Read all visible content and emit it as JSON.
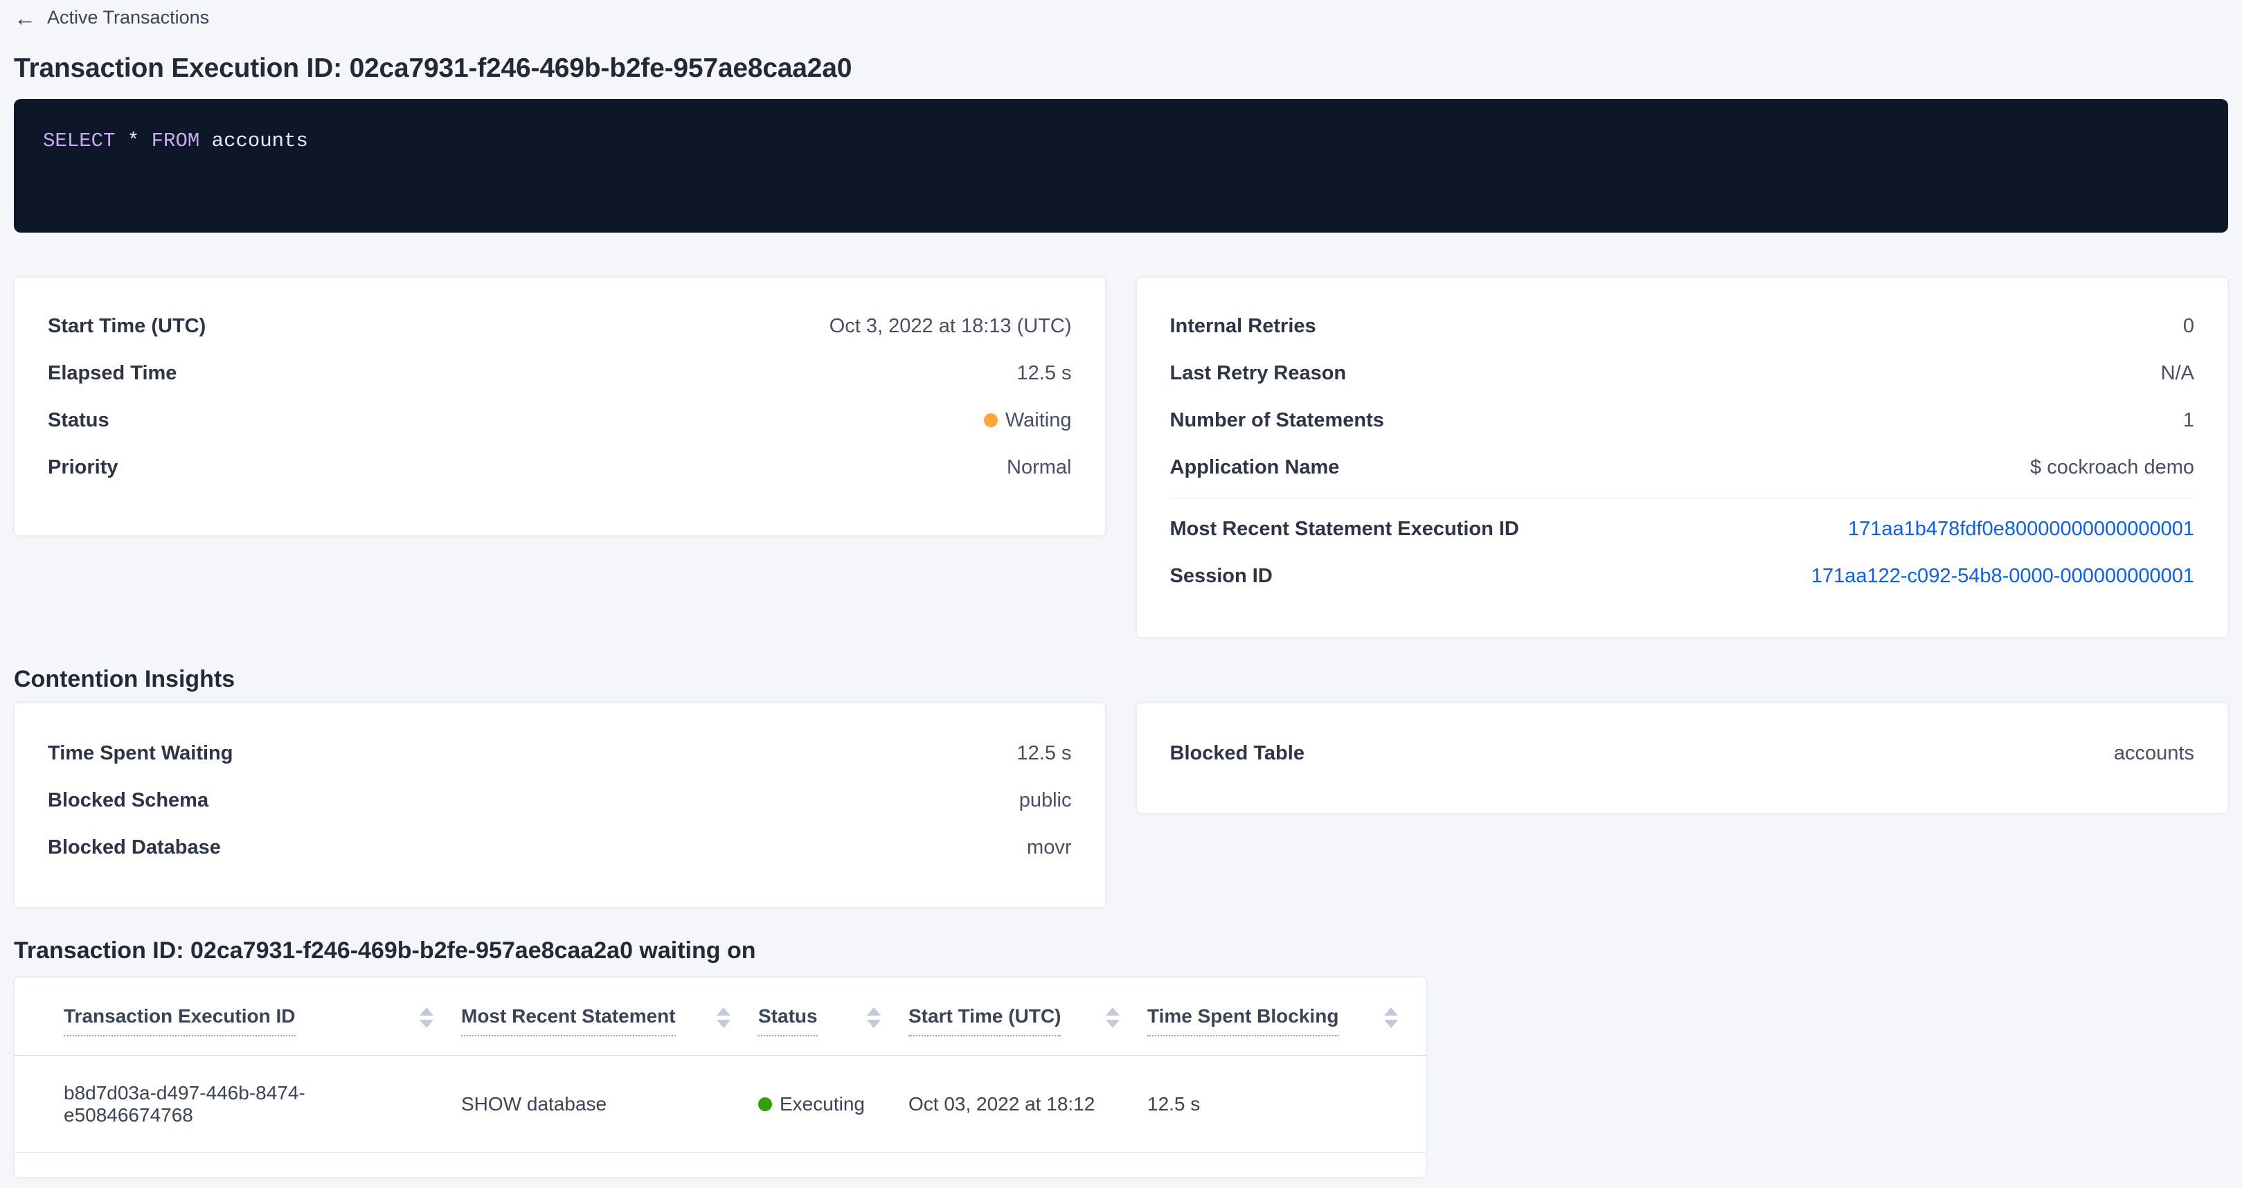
{
  "header": {
    "back_label": "Active Transactions",
    "title": "Transaction Execution ID: 02ca7931-f246-469b-b2fe-957ae8caa2a0"
  },
  "sql": {
    "keyword_select": "SELECT",
    "star": " * ",
    "keyword_from": "FROM",
    "table": " accounts"
  },
  "overview_left": {
    "rows": [
      {
        "label": "Start Time (UTC)",
        "value": "Oct 3, 2022 at 18:13 (UTC)"
      },
      {
        "label": "Elapsed Time",
        "value": "12.5 s"
      },
      {
        "label": "Status",
        "value": "Waiting"
      },
      {
        "label": "Priority",
        "value": "Normal"
      }
    ]
  },
  "overview_right": {
    "rows": [
      {
        "label": "Internal Retries",
        "value": "0"
      },
      {
        "label": "Last Retry Reason",
        "value": "N/A"
      },
      {
        "label": "Number of Statements",
        "value": "1"
      },
      {
        "label": "Application Name",
        "value": "$ cockroach demo"
      }
    ],
    "links": [
      {
        "label": "Most Recent Statement Execution ID",
        "value": "171aa1b478fdf0e80000000000000001"
      },
      {
        "label": "Session ID",
        "value": "171aa122-c092-54b8-0000-000000000001"
      }
    ]
  },
  "contention": {
    "heading": "Contention Insights",
    "left_rows": [
      {
        "label": "Time Spent Waiting",
        "value": "12.5 s"
      },
      {
        "label": "Blocked Schema",
        "value": "public"
      },
      {
        "label": "Blocked Database",
        "value": "movr"
      }
    ],
    "right_rows": [
      {
        "label": "Blocked Table",
        "value": "accounts"
      }
    ]
  },
  "waiting_table": {
    "heading": "Transaction ID: 02ca7931-f246-469b-b2fe-957ae8caa2a0 waiting on",
    "columns": [
      "Transaction Execution ID",
      "Most Recent Statement",
      "Status",
      "Start Time (UTC)",
      "Time Spent Blocking"
    ],
    "rows": [
      {
        "execution_id": "b8d7d03a-d497-446b-8474-e50846674768",
        "statement": "SHOW database",
        "status": "Executing",
        "start_time": "Oct 03, 2022 at 18:12",
        "time_blocking": "12.5 s"
      }
    ]
  },
  "colors": {
    "status_waiting": "#ffa53b",
    "status_executing": "#33a106",
    "link": "#0a5cff",
    "sql_keyword": "#c7abf2",
    "sql_background": "#0e1727"
  }
}
